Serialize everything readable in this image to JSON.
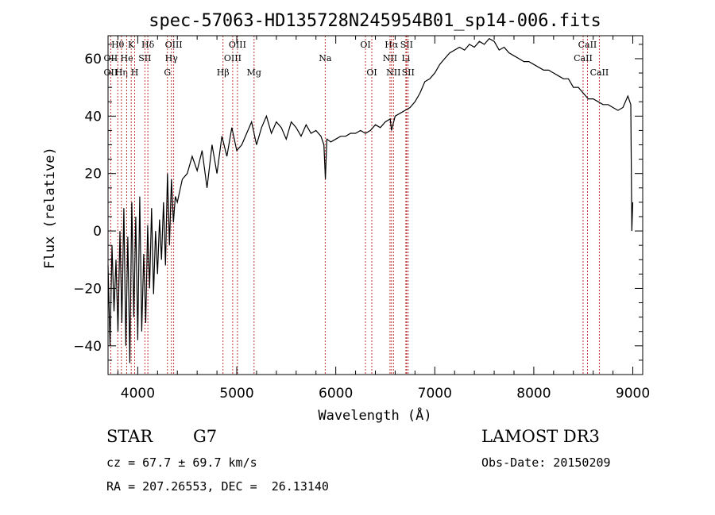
{
  "chart_data": {
    "type": "line",
    "title": "spec-57063-HD135728N245954B01_sp14-006.fits",
    "xlabel": "Wavelength (Å)",
    "ylabel": "Flux (relative)",
    "xlim": [
      3700,
      9100
    ],
    "ylim": [
      -50,
      68
    ],
    "xticks": [
      4000,
      5000,
      6000,
      7000,
      8000,
      9000
    ],
    "yticks": [
      -40,
      -20,
      0,
      20,
      40,
      60
    ],
    "series": [
      {
        "name": "flux",
        "x": [
          3700,
          3720,
          3740,
          3760,
          3780,
          3800,
          3820,
          3840,
          3860,
          3880,
          3900,
          3920,
          3940,
          3960,
          3980,
          4000,
          4020,
          4040,
          4060,
          4080,
          4100,
          4120,
          4140,
          4160,
          4180,
          4200,
          4220,
          4240,
          4260,
          4280,
          4300,
          4320,
          4340,
          4360,
          4380,
          4400,
          4450,
          4500,
          4550,
          4600,
          4650,
          4700,
          4750,
          4800,
          4850,
          4900,
          4950,
          5000,
          5050,
          5100,
          5150,
          5200,
          5250,
          5300,
          5350,
          5400,
          5450,
          5500,
          5550,
          5600,
          5650,
          5700,
          5750,
          5800,
          5850,
          5880,
          5895,
          5910,
          5950,
          6000,
          6050,
          6100,
          6150,
          6200,
          6250,
          6300,
          6350,
          6400,
          6450,
          6500,
          6550,
          6563,
          6600,
          6650,
          6700,
          6750,
          6800,
          6850,
          6900,
          6950,
          7000,
          7050,
          7100,
          7150,
          7200,
          7250,
          7300,
          7350,
          7400,
          7450,
          7500,
          7550,
          7600,
          7650,
          7700,
          7750,
          7800,
          7850,
          7900,
          7950,
          8000,
          8050,
          8100,
          8150,
          8200,
          8250,
          8300,
          8350,
          8400,
          8450,
          8500,
          8550,
          8600,
          8650,
          8700,
          8750,
          8800,
          8850,
          8900,
          8950,
          8980,
          8990,
          9000
        ],
        "values": [
          -12,
          -40,
          -5,
          -28,
          -10,
          -35,
          0,
          -32,
          8,
          -40,
          -2,
          -46,
          10,
          -30,
          5,
          -38,
          12,
          -35,
          -8,
          -32,
          2,
          -20,
          8,
          -22,
          0,
          -15,
          4,
          -10,
          10,
          -12,
          20,
          -5,
          18,
          3,
          12,
          10,
          18,
          20,
          26,
          21,
          28,
          15,
          30,
          20,
          33,
          26,
          36,
          28,
          30,
          34,
          38,
          30,
          36,
          40,
          34,
          38,
          36,
          32,
          38,
          36,
          33,
          37,
          34,
          35,
          33,
          30,
          18,
          32,
          31,
          32,
          33,
          33,
          34,
          34,
          35,
          34,
          35,
          37,
          36,
          38,
          39,
          35,
          40,
          41,
          42,
          43,
          45,
          48,
          52,
          53,
          55,
          58,
          60,
          62,
          63,
          64,
          63,
          65,
          64,
          66,
          65,
          67,
          66,
          63,
          64,
          62,
          61,
          60,
          59,
          59,
          58,
          57,
          56,
          56,
          55,
          54,
          53,
          53,
          50,
          50,
          48,
          46,
          46,
          45,
          44,
          44,
          43,
          42,
          43,
          47,
          44,
          0,
          10
        ],
        "color": "#000000"
      }
    ],
    "spectral_lines": [
      {
        "name": "Hθ",
        "x": 3798,
        "row": 0
      },
      {
        "name": "OII",
        "x": 3727,
        "row": 1
      },
      {
        "name": "OII",
        "x": 3727,
        "row": 2
      },
      {
        "name": "Hη",
        "x": 3835,
        "row": 2
      },
      {
        "name": "He",
        "x": 3889,
        "row": 1
      },
      {
        "name": "K",
        "x": 3934,
        "row": 0
      },
      {
        "name": "SII",
        "x": 4072,
        "row": 1
      },
      {
        "name": "H",
        "x": 3969,
        "row": 2
      },
      {
        "name": "Hδ",
        "x": 4102,
        "row": 0
      },
      {
        "name": "OIII",
        "x": 4363,
        "row": 0
      },
      {
        "name": "Hγ",
        "x": 4340,
        "row": 1
      },
      {
        "name": "G",
        "x": 4300,
        "row": 2
      },
      {
        "name": "OIII",
        "x": 5007,
        "row": 0
      },
      {
        "name": "OIII",
        "x": 4959,
        "row": 1
      },
      {
        "name": "Hβ",
        "x": 4861,
        "row": 2
      },
      {
        "name": "Mg",
        "x": 5175,
        "row": 2
      },
      {
        "name": "Na",
        "x": 5893,
        "row": 1
      },
      {
        "name": "OI",
        "x": 6300,
        "row": 0
      },
      {
        "name": "OI",
        "x": 6364,
        "row": 2
      },
      {
        "name": "Hα",
        "x": 6563,
        "row": 0
      },
      {
        "name": "SII",
        "x": 6716,
        "row": 0
      },
      {
        "name": "NII",
        "x": 6548,
        "row": 1
      },
      {
        "name": "Li",
        "x": 6708,
        "row": 1
      },
      {
        "name": "NII",
        "x": 6583,
        "row": 2
      },
      {
        "name": "SII",
        "x": 6731,
        "row": 2
      },
      {
        "name": "CaII",
        "x": 8542,
        "row": 0
      },
      {
        "name": "CaII",
        "x": 8498,
        "row": 1
      },
      {
        "name": "CaII",
        "x": 8662,
        "row": 2
      }
    ]
  },
  "info": {
    "class_label": "STAR",
    "subclass": "G7",
    "survey": "LAMOST DR3",
    "cz": "cz = 67.7 ± 69.7 km/s",
    "obs_date": "Obs-Date: 20150209",
    "coords": "RA = 207.26553, DEC =  26.13140"
  }
}
